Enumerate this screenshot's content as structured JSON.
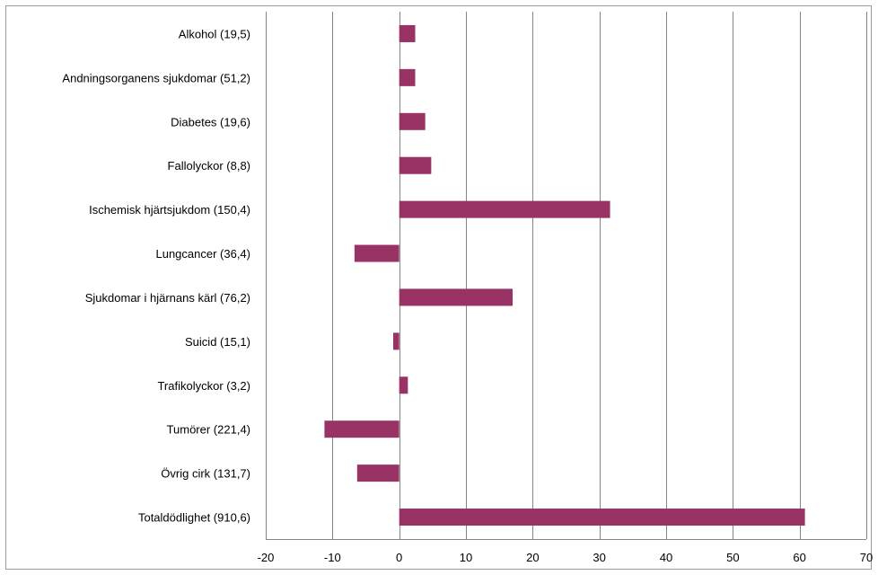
{
  "chart_data": {
    "type": "bar",
    "orientation": "horizontal",
    "categories": [
      "Alkohol (19,5)",
      "Andningsorganens sjukdomar (51,2)",
      "Diabetes (19,6)",
      "Fallolyckor (8,8)",
      "Ischemisk hjärtsjukdom (150,4)",
      "Lungcancer (36,4)",
      "Sjukdomar i hjärnans kärl (76,2)",
      "Suicid (15,1)",
      "Trafikolyckor (3,2)",
      "Tumörer (221,4)",
      "Övrig cirk (131,7)",
      "Totaldödlighet (910,6)"
    ],
    "values": [
      2.4,
      2.4,
      3.9,
      4.8,
      31.6,
      -6.7,
      17.0,
      -0.9,
      1.3,
      -11.2,
      -6.3,
      60.8
    ],
    "xlim": [
      -20,
      70
    ],
    "xticks": [
      "-20",
      "-10",
      "0",
      "10",
      "20",
      "30",
      "40",
      "50",
      "60",
      "70"
    ],
    "xtick_values": [
      -20,
      -10,
      0,
      10,
      20,
      30,
      40,
      50,
      60,
      70
    ],
    "title": "",
    "xlabel": "",
    "ylabel": "",
    "grid": "vertical",
    "legend": "none",
    "bar_color": "#993366",
    "grid_color": "#868686"
  }
}
